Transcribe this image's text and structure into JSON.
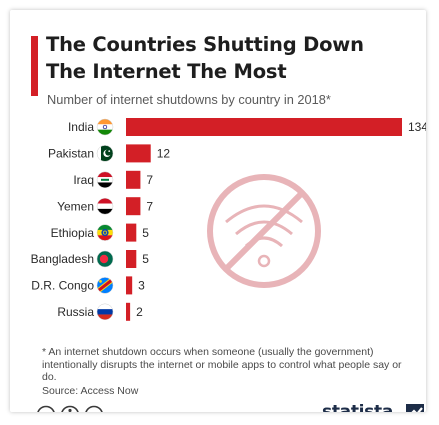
{
  "header": {
    "title_line1": "The Countries Shutting Down",
    "title_line2": "The Internet The Most",
    "subtitle": "Number of internet shutdowns by country in 2018*"
  },
  "chart_data": {
    "type": "bar",
    "orientation": "horizontal",
    "title": "The Countries Shutting Down The Internet The Most",
    "subtitle": "Number of internet shutdowns by country in 2018*",
    "categories": [
      "India",
      "Pakistan",
      "Iraq",
      "Yemen",
      "Ethiopia",
      "Bangladesh",
      "D.R. Congo",
      "Russia"
    ],
    "values": [
      134,
      12,
      7,
      7,
      5,
      5,
      3,
      2
    ],
    "xlim": [
      0,
      134
    ],
    "grid": false,
    "legend": "none",
    "data_labels": true,
    "flags": [
      "india-flag-icon",
      "pakistan-flag-icon",
      "iraq-flag-icon",
      "yemen-flag-icon",
      "ethiopia-flag-icon",
      "bangladesh-flag-icon",
      "dr-congo-flag-icon",
      "russia-flag-icon"
    ]
  },
  "decoration": {
    "icon": "no-wifi-icon",
    "color": "#e8b4b8"
  },
  "footer": {
    "footnote": "* An internet shutdown occurs when someone (usually the government) intentionally disrupts the internet or mobile apps to control what people say or do.",
    "source": "Source: Access Now",
    "license_icons": [
      "cc-icon",
      "attribution-icon",
      "no-derivatives-icon"
    ],
    "brand": "statista"
  },
  "colors": {
    "accent": "#d31f26",
    "text": "#1e1e1e",
    "brand": "#1d2d48"
  }
}
